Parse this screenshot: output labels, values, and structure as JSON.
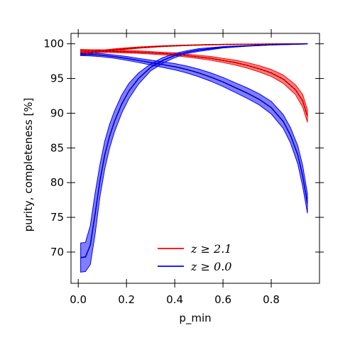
{
  "chart_data": {
    "type": "line",
    "xlabel": "p_min",
    "ylabel": "purity, completeness [%]",
    "xlim": [
      -0.03,
      1.0
    ],
    "ylim": [
      65.5,
      101.5
    ],
    "x_ticks": [
      0.0,
      0.2,
      0.4,
      0.6,
      0.8
    ],
    "x_tick_labels": [
      "0.0",
      "0.2",
      "0.4",
      "0.6",
      "0.8"
    ],
    "y_ticks": [
      70,
      75,
      80,
      85,
      90,
      95,
      100
    ],
    "y_tick_labels": [
      "70",
      "75",
      "80",
      "85",
      "90",
      "95",
      "100"
    ],
    "grid": false,
    "legend_position": "lower-center",
    "legend": [
      {
        "label": "z ≥ 2.1",
        "color": "#ff0000"
      },
      {
        "label": "z ≥ 0.0",
        "color": "#0000ff"
      }
    ],
    "series": [
      {
        "name": "z ≥ 2.1",
        "role": "purity",
        "color": "#ff0000",
        "x": [
          0.01,
          0.05,
          0.1,
          0.15,
          0.2,
          0.25,
          0.3,
          0.35,
          0.4,
          0.45,
          0.5,
          0.55,
          0.6,
          0.65,
          0.7,
          0.75,
          0.8,
          0.85,
          0.9,
          0.95
        ],
        "y": [
          98.55,
          98.75,
          98.95,
          99.15,
          99.3,
          99.45,
          99.55,
          99.65,
          99.72,
          99.78,
          99.83,
          99.87,
          99.9,
          99.92,
          99.94,
          99.95,
          99.97,
          99.98,
          99.99,
          100.0
        ],
        "y_lower": [
          98.3,
          98.55,
          98.8,
          99.0,
          99.18,
          99.35,
          99.47,
          99.58,
          99.66,
          99.73,
          99.79,
          99.84,
          99.87,
          99.9,
          99.92,
          99.94,
          99.96,
          99.97,
          99.98,
          99.99
        ],
        "y_upper": [
          98.8,
          98.95,
          99.1,
          99.28,
          99.42,
          99.55,
          99.63,
          99.72,
          99.78,
          99.83,
          99.87,
          99.9,
          99.93,
          99.94,
          99.96,
          99.97,
          99.98,
          99.99,
          100.0,
          100.0
        ]
      },
      {
        "name": "z ≥ 2.1",
        "role": "completeness",
        "color": "#ff0000",
        "x": [
          0.01,
          0.05,
          0.1,
          0.15,
          0.2,
          0.25,
          0.3,
          0.35,
          0.4,
          0.45,
          0.5,
          0.55,
          0.6,
          0.65,
          0.7,
          0.75,
          0.8,
          0.85,
          0.9,
          0.93,
          0.95
        ],
        "y": [
          99.0,
          98.98,
          98.95,
          98.9,
          98.85,
          98.8,
          98.7,
          98.6,
          98.5,
          98.3,
          98.1,
          97.9,
          97.6,
          97.3,
          96.9,
          96.4,
          95.8,
          94.9,
          93.4,
          91.8,
          89.6
        ],
        "y_lower": [
          98.8,
          98.8,
          98.77,
          98.72,
          98.68,
          98.62,
          98.52,
          98.42,
          98.3,
          98.08,
          97.87,
          97.62,
          97.3,
          96.95,
          96.5,
          95.95,
          95.3,
          94.3,
          92.7,
          90.9,
          88.7
        ],
        "y_upper": [
          99.2,
          99.16,
          99.13,
          99.08,
          99.02,
          98.98,
          98.88,
          98.78,
          98.7,
          98.52,
          98.33,
          98.18,
          97.9,
          97.65,
          97.3,
          96.85,
          96.3,
          95.5,
          94.1,
          92.7,
          90.5
        ]
      },
      {
        "name": "z ≥ 0.0",
        "role": "purity",
        "color": "#0000ff",
        "x": [
          0.01,
          0.03,
          0.05,
          0.07,
          0.09,
          0.11,
          0.13,
          0.15,
          0.18,
          0.21,
          0.25,
          0.3,
          0.35,
          0.4,
          0.45,
          0.5,
          0.6,
          0.7,
          0.8,
          0.9,
          0.95
        ],
        "y": [
          69.2,
          69.3,
          71.0,
          75.5,
          80.3,
          84.0,
          86.7,
          88.8,
          91.3,
          93.2,
          95.0,
          96.6,
          97.6,
          98.3,
          98.8,
          99.1,
          99.5,
          99.7,
          99.85,
          99.95,
          100.0
        ],
        "y_lower": [
          67.1,
          67.2,
          68.2,
          72.6,
          78.0,
          82.0,
          85.0,
          87.3,
          90.0,
          92.1,
          94.2,
          96.1,
          97.2,
          98.0,
          98.6,
          98.9,
          99.4,
          99.65,
          99.82,
          99.93,
          99.98
        ],
        "y_upper": [
          71.3,
          71.4,
          73.8,
          78.5,
          82.6,
          86.0,
          88.4,
          90.3,
          92.6,
          94.3,
          95.8,
          97.1,
          98.0,
          98.6,
          99.0,
          99.3,
          99.6,
          99.75,
          99.88,
          99.97,
          100.0
        ]
      },
      {
        "name": "z ≥ 0.0",
        "role": "completeness",
        "color": "#0000ff",
        "x": [
          0.01,
          0.05,
          0.1,
          0.15,
          0.2,
          0.25,
          0.3,
          0.35,
          0.4,
          0.45,
          0.5,
          0.55,
          0.6,
          0.65,
          0.7,
          0.75,
          0.8,
          0.85,
          0.88,
          0.91,
          0.93,
          0.95
        ],
        "y": [
          98.5,
          98.45,
          98.35,
          98.15,
          97.9,
          97.6,
          97.3,
          97.0,
          96.7,
          96.3,
          95.8,
          95.2,
          94.5,
          93.7,
          92.9,
          92.0,
          90.8,
          88.8,
          86.8,
          84.0,
          81.0,
          77.0
        ],
        "y_lower": [
          98.3,
          98.25,
          98.12,
          97.92,
          97.62,
          97.3,
          96.95,
          96.6,
          96.25,
          95.8,
          95.25,
          94.6,
          93.85,
          93.0,
          92.15,
          91.2,
          89.9,
          87.8,
          85.7,
          82.7,
          79.5,
          75.6
        ],
        "y_upper": [
          98.7,
          98.65,
          98.58,
          98.38,
          98.18,
          97.9,
          97.65,
          97.4,
          97.15,
          96.8,
          96.35,
          95.8,
          95.15,
          94.4,
          93.65,
          92.8,
          91.7,
          89.8,
          87.9,
          85.3,
          82.5,
          78.4
        ]
      }
    ]
  }
}
